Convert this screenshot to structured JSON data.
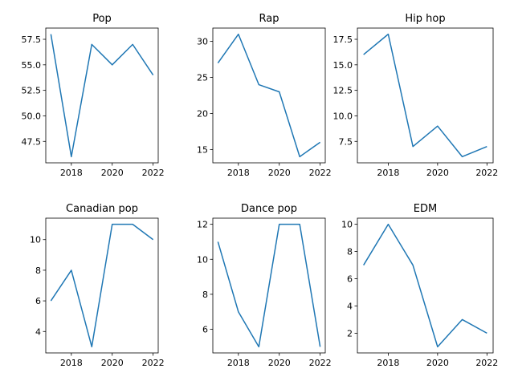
{
  "chart_data": [
    {
      "type": "line",
      "title": "Pop",
      "x": [
        2017,
        2018,
        2019,
        2020,
        2021,
        2022
      ],
      "values": [
        58,
        46,
        57,
        55,
        57,
        54
      ],
      "xlim": [
        2016.75,
        2022.25
      ],
      "ylim": [
        45.4,
        58.6
      ],
      "xticks": [
        2018,
        2020,
        2022
      ],
      "yticks": [
        47.5,
        50.0,
        52.5,
        55.0,
        57.5
      ],
      "ytick_labels": [
        "47.5",
        "50.0",
        "52.5",
        "55.0",
        "57.5"
      ],
      "color": "#1f77b4"
    },
    {
      "type": "line",
      "title": "Rap",
      "x": [
        2017,
        2018,
        2019,
        2020,
        2021,
        2022
      ],
      "values": [
        27,
        31,
        24,
        23,
        14,
        16
      ],
      "xlim": [
        2016.75,
        2022.25
      ],
      "ylim": [
        13.15,
        31.85
      ],
      "xticks": [
        2018,
        2020,
        2022
      ],
      "yticks": [
        15,
        20,
        25,
        30
      ],
      "ytick_labels": [
        "15",
        "20",
        "25",
        "30"
      ],
      "color": "#1f77b4"
    },
    {
      "type": "line",
      "title": "Hip hop",
      "x": [
        2017,
        2018,
        2019,
        2020,
        2021,
        2022
      ],
      "values": [
        16,
        18,
        7,
        9,
        6,
        7
      ],
      "xlim": [
        2016.75,
        2022.25
      ],
      "ylim": [
        5.4,
        18.6
      ],
      "xticks": [
        2018,
        2020,
        2022
      ],
      "yticks": [
        7.5,
        10.0,
        12.5,
        15.0,
        17.5
      ],
      "ytick_labels": [
        "7.5",
        "10.0",
        "12.5",
        "15.0",
        "17.5"
      ],
      "color": "#1f77b4"
    },
    {
      "type": "line",
      "title": "Canadian pop",
      "x": [
        2017,
        2018,
        2019,
        2020,
        2021,
        2022
      ],
      "values": [
        6,
        8,
        3,
        11,
        11,
        10
      ],
      "xlim": [
        2016.75,
        2022.25
      ],
      "ylim": [
        2.6,
        11.4
      ],
      "xticks": [
        2018,
        2020,
        2022
      ],
      "yticks": [
        4,
        6,
        8,
        10
      ],
      "ytick_labels": [
        "4",
        "6",
        "8",
        "10"
      ],
      "color": "#1f77b4"
    },
    {
      "type": "line",
      "title": "Dance pop",
      "x": [
        2017,
        2018,
        2019,
        2020,
        2021,
        2022
      ],
      "values": [
        11,
        7,
        5,
        12,
        12,
        5
      ],
      "xlim": [
        2016.75,
        2022.25
      ],
      "ylim": [
        4.65,
        12.35
      ],
      "xticks": [
        2018,
        2020,
        2022
      ],
      "yticks": [
        6,
        8,
        10,
        12
      ],
      "ytick_labels": [
        "6",
        "8",
        "10",
        "12"
      ],
      "color": "#1f77b4"
    },
    {
      "type": "line",
      "title": "EDM",
      "x": [
        2017,
        2018,
        2019,
        2020,
        2021,
        2022
      ],
      "values": [
        7,
        10,
        7,
        1,
        3,
        2
      ],
      "xlim": [
        2016.75,
        2022.25
      ],
      "ylim": [
        0.55,
        10.45
      ],
      "xticks": [
        2018,
        2020,
        2022
      ],
      "yticks": [
        2,
        4,
        6,
        8,
        10
      ],
      "ytick_labels": [
        "2",
        "4",
        "6",
        "8",
        "10"
      ],
      "color": "#1f77b4"
    }
  ]
}
